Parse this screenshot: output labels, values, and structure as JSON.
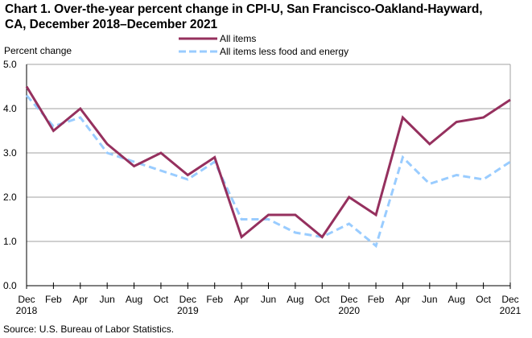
{
  "chart_data": {
    "type": "line",
    "title": "Chart 1. Over-the-year percent change in CPI-U, San Francisco-Oakland-Hayward, CA, December 2018–December 2021",
    "title_lines": [
      "Chart 1. Over-the-year percent change in CPI-U, San Francisco-Oakland-Hayward,",
      "CA, December 2018–December 2021"
    ],
    "xlabel": "",
    "ylabel": "Percent change",
    "ylim": [
      0,
      5
    ],
    "yticks": [
      "0.0",
      "1.0",
      "2.0",
      "3.0",
      "4.0",
      "5.0"
    ],
    "grid": true,
    "legend_position": "top-center",
    "x": [
      "Dec 2018",
      "Feb 2019",
      "Apr 2019",
      "Jun 2019",
      "Aug 2019",
      "Oct 2019",
      "Dec 2019",
      "Feb 2020",
      "Apr 2020",
      "Jun 2020",
      "Aug 2020",
      "Oct 2020",
      "Dec 2020",
      "Feb 2021",
      "Apr 2021",
      "Jun 2021",
      "Aug 2021",
      "Oct 2021",
      "Dec 2021"
    ],
    "xtick_labels": [
      {
        "month": "Dec",
        "year": "2018"
      },
      {
        "month": "Feb",
        "year": ""
      },
      {
        "month": "Apr",
        "year": ""
      },
      {
        "month": "Jun",
        "year": ""
      },
      {
        "month": "Aug",
        "year": ""
      },
      {
        "month": "Oct",
        "year": ""
      },
      {
        "month": "Dec",
        "year": "2019"
      },
      {
        "month": "Feb",
        "year": ""
      },
      {
        "month": "Apr",
        "year": ""
      },
      {
        "month": "Jun",
        "year": ""
      },
      {
        "month": "Aug",
        "year": ""
      },
      {
        "month": "Oct",
        "year": ""
      },
      {
        "month": "Dec",
        "year": "2020"
      },
      {
        "month": "Feb",
        "year": ""
      },
      {
        "month": "Apr",
        "year": ""
      },
      {
        "month": "Jun",
        "year": ""
      },
      {
        "month": "Aug",
        "year": ""
      },
      {
        "month": "Oct",
        "year": ""
      },
      {
        "month": "Dec",
        "year": "2021"
      }
    ],
    "series": [
      {
        "name": "All items",
        "color": "#95305e",
        "style": "solid",
        "values": [
          4.5,
          3.5,
          4.0,
          3.2,
          2.7,
          3.0,
          2.5,
          2.9,
          1.1,
          1.6,
          1.6,
          1.1,
          2.0,
          1.6,
          3.8,
          3.2,
          3.7,
          3.8,
          4.2
        ]
      },
      {
        "name": "All items less food and energy",
        "color": "#99ccff",
        "style": "dashed",
        "values": [
          4.3,
          3.6,
          3.8,
          3.0,
          2.8,
          2.6,
          2.4,
          2.8,
          1.5,
          1.5,
          1.2,
          1.1,
          1.4,
          0.9,
          2.9,
          2.3,
          2.5,
          2.4,
          2.8
        ]
      }
    ],
    "source": "Source: U.S. Bureau of Labor Statistics."
  }
}
